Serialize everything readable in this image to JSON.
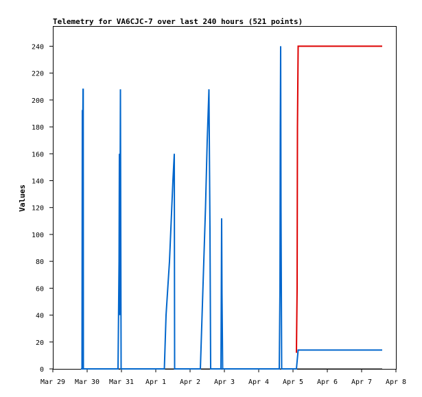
{
  "chart_data": {
    "type": "line",
    "title": "Telemetry for VA6CJC-7 over last 240 hours (521 points)",
    "ylabel": "Values",
    "xlabel": "",
    "ylim": [
      0,
      255
    ],
    "yticks": [
      0,
      20,
      40,
      60,
      80,
      100,
      120,
      140,
      160,
      180,
      200,
      220,
      240
    ],
    "xlim": [
      0,
      10
    ],
    "xticks": [
      {
        "x": 0,
        "label": "Mar 29"
      },
      {
        "x": 1,
        "label": "Mar 30"
      },
      {
        "x": 2,
        "label": "Mar 31"
      },
      {
        "x": 3,
        "label": "Apr 1"
      },
      {
        "x": 4,
        "label": "Apr 2"
      },
      {
        "x": 5,
        "label": "Apr 3"
      },
      {
        "x": 6,
        "label": "Apr 4"
      },
      {
        "x": 7,
        "label": "Apr 5"
      },
      {
        "x": 8,
        "label": "Apr 6"
      },
      {
        "x": 9,
        "label": "Apr 7"
      },
      {
        "x": 10,
        "label": "Apr 8"
      }
    ],
    "grid": false,
    "series": [
      {
        "color": "#000000",
        "points": [
          [
            0.82,
            0
          ],
          [
            9.6,
            0
          ]
        ]
      },
      {
        "color": "#0066cc",
        "points": [
          [
            0.82,
            0
          ],
          [
            0.85,
            0
          ],
          [
            0.86,
            192
          ],
          [
            0.875,
            192
          ],
          [
            0.88,
            208
          ],
          [
            0.885,
            208
          ],
          [
            0.89,
            0
          ],
          [
            1.9,
            0
          ],
          [
            1.93,
            80
          ],
          [
            1.94,
            160
          ],
          [
            1.95,
            40
          ],
          [
            1.97,
            208
          ],
          [
            1.98,
            104
          ],
          [
            1.99,
            0
          ],
          [
            3.25,
            0
          ],
          [
            3.3,
            40
          ],
          [
            3.4,
            80
          ],
          [
            3.5,
            140
          ],
          [
            3.52,
            150
          ],
          [
            3.54,
            160
          ],
          [
            3.55,
            0
          ],
          [
            4.3,
            0
          ],
          [
            4.35,
            40
          ],
          [
            4.45,
            120
          ],
          [
            4.5,
            170
          ],
          [
            4.55,
            208
          ],
          [
            4.58,
            104
          ],
          [
            4.6,
            0
          ],
          [
            4.9,
            0
          ],
          [
            4.92,
            112
          ],
          [
            4.93,
            56
          ],
          [
            4.95,
            0
          ],
          [
            6.6,
            0
          ],
          [
            6.62,
            60
          ],
          [
            6.63,
            180
          ],
          [
            6.64,
            240
          ],
          [
            6.65,
            120
          ],
          [
            6.67,
            0
          ],
          [
            7.1,
            0
          ],
          [
            7.15,
            14
          ],
          [
            9.6,
            14
          ]
        ]
      },
      {
        "color": "#dd0000",
        "points": [
          [
            7.1,
            12
          ],
          [
            7.12,
            60
          ],
          [
            7.13,
            180
          ],
          [
            7.15,
            240
          ],
          [
            9.6,
            240
          ]
        ]
      }
    ]
  }
}
